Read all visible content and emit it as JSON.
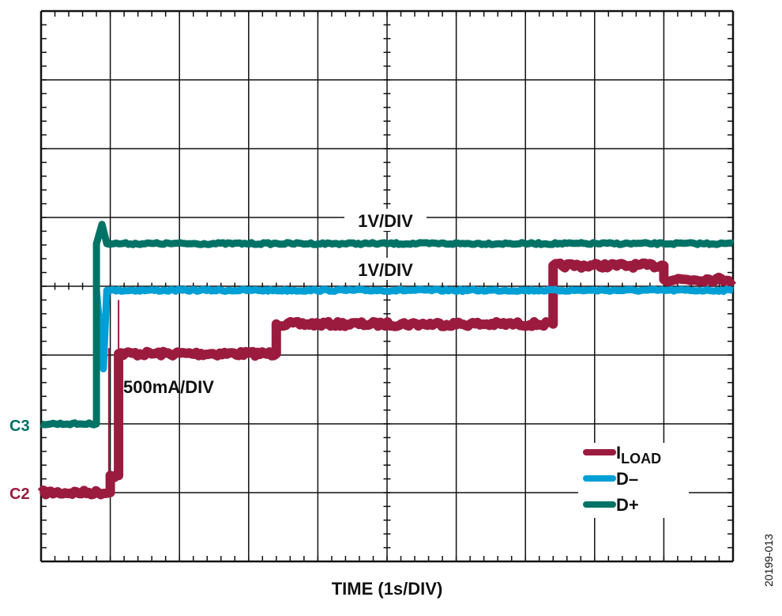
{
  "chart_data": {
    "type": "line",
    "title": "",
    "xlabel": "TIME (1s/DIV)",
    "ylabel": "",
    "x_unit": "s",
    "y_unit": "div",
    "xlim": [
      0,
      10
    ],
    "ylim": [
      0,
      8
    ],
    "grid": true,
    "legend_position": "bottom-right",
    "annotations": {
      "dplus_scale": "1V/DIV",
      "dminus_scale": "1V/DIV",
      "iload_scale": "500mA/DIV",
      "figure_id": "20199-013"
    },
    "channel_markers": [
      {
        "label": "C3",
        "level": 2.0,
        "color": "#007366"
      },
      {
        "label": "C2",
        "level": 1.0,
        "color": "#9b1b3f"
      }
    ],
    "series": [
      {
        "name": "I",
        "name_sub": "LOAD",
        "color": "#9b1b3f",
        "points": [
          [
            0,
            1.0
          ],
          [
            1.0,
            1.0
          ],
          [
            1.0,
            1.25
          ],
          [
            1.12,
            1.25
          ],
          [
            1.12,
            3.02
          ],
          [
            3.4,
            3.02
          ],
          [
            3.4,
            3.45
          ],
          [
            7.4,
            3.45
          ],
          [
            7.4,
            4.3
          ],
          [
            9.0,
            4.3
          ],
          [
            9.0,
            4.1
          ],
          [
            10,
            4.1
          ]
        ],
        "spikes": [
          [
            0.98,
            3.1
          ],
          [
            1.12,
            3.8
          ]
        ]
      },
      {
        "name": "D–",
        "color": "#00a0d6",
        "points": [
          [
            0,
            null
          ],
          [
            0.8,
            3.94
          ],
          [
            0.9,
            2.8
          ],
          [
            0.95,
            3.94
          ],
          [
            10,
            3.94
          ]
        ]
      },
      {
        "name": "D+",
        "color": "#007366",
        "points": [
          [
            0,
            2.0
          ],
          [
            0.8,
            2.0
          ],
          [
            0.8,
            4.62
          ],
          [
            0.88,
            4.9
          ],
          [
            0.95,
            4.62
          ],
          [
            10,
            4.62
          ]
        ]
      }
    ]
  }
}
